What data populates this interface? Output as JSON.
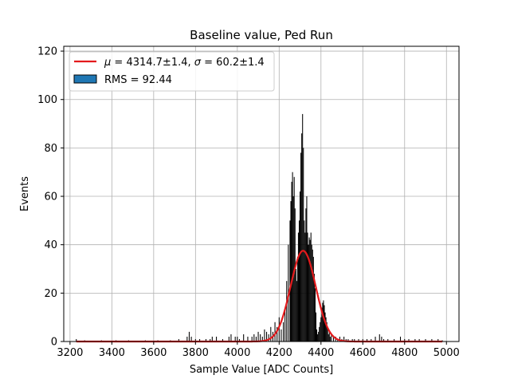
{
  "chart_data": {
    "type": "histogram",
    "title": "Baseline value, Ped Run",
    "xlabel": "Sample Value [ADC Counts]",
    "ylabel": "Events",
    "xlim": [
      3170,
      5060
    ],
    "ylim": [
      0,
      122
    ],
    "xticks": [
      3200,
      3400,
      3600,
      3800,
      4000,
      4200,
      4400,
      4600,
      4800,
      5000
    ],
    "yticks": [
      0,
      20,
      40,
      60,
      80,
      100,
      120
    ],
    "grid": true,
    "legend_position": "top-left",
    "bin_width": 4,
    "histogram": {
      "name": "RMS = 92.44",
      "color": "#000000",
      "legend_patch_color": "#1f77b4",
      "bins": [
        [
          3230,
          1
        ],
        [
          3270,
          0.5
        ],
        [
          3350,
          0.5
        ],
        [
          3420,
          0.5
        ],
        [
          3480,
          0.5
        ],
        [
          3560,
          0.5
        ],
        [
          3620,
          0.5
        ],
        [
          3680,
          0.5
        ],
        [
          3720,
          1
        ],
        [
          3760,
          2
        ],
        [
          3770,
          4
        ],
        [
          3780,
          2
        ],
        [
          3800,
          1
        ],
        [
          3820,
          1
        ],
        [
          3850,
          1
        ],
        [
          3870,
          1
        ],
        [
          3880,
          2
        ],
        [
          3900,
          2
        ],
        [
          3930,
          1
        ],
        [
          3960,
          2
        ],
        [
          3970,
          3
        ],
        [
          3990,
          2
        ],
        [
          4000,
          2
        ],
        [
          4010,
          1
        ],
        [
          4030,
          3
        ],
        [
          4050,
          2
        ],
        [
          4070,
          2
        ],
        [
          4080,
          3
        ],
        [
          4090,
          2
        ],
        [
          4100,
          4
        ],
        [
          4110,
          3
        ],
        [
          4120,
          2
        ],
        [
          4130,
          5
        ],
        [
          4140,
          4
        ],
        [
          4150,
          3
        ],
        [
          4160,
          6
        ],
        [
          4170,
          4
        ],
        [
          4180,
          8
        ],
        [
          4190,
          6
        ],
        [
          4200,
          10
        ],
        [
          4210,
          5
        ],
        [
          4220,
          8
        ],
        [
          4228,
          14
        ],
        [
          4236,
          25
        ],
        [
          4244,
          40
        ],
        [
          4252,
          50
        ],
        [
          4256,
          58
        ],
        [
          4260,
          66
        ],
        [
          4264,
          70
        ],
        [
          4268,
          60
        ],
        [
          4272,
          68
        ],
        [
          4276,
          55
        ],
        [
          4280,
          30
        ],
        [
          4284,
          25
        ],
        [
          4288,
          35
        ],
        [
          4292,
          45
        ],
        [
          4296,
          50
        ],
        [
          4300,
          62
        ],
        [
          4304,
          78
        ],
        [
          4308,
          86
        ],
        [
          4312,
          94
        ],
        [
          4316,
          80
        ],
        [
          4320,
          50
        ],
        [
          4324,
          45
        ],
        [
          4328,
          55
        ],
        [
          4332,
          60
        ],
        [
          4336,
          45
        ],
        [
          4340,
          40
        ],
        [
          4344,
          43
        ],
        [
          4348,
          42
        ],
        [
          4352,
          45
        ],
        [
          4356,
          40
        ],
        [
          4360,
          38
        ],
        [
          4364,
          35
        ],
        [
          4368,
          28
        ],
        [
          4372,
          22
        ],
        [
          4376,
          12
        ],
        [
          4380,
          5
        ],
        [
          4384,
          3
        ],
        [
          4388,
          4
        ],
        [
          4392,
          6
        ],
        [
          4396,
          8
        ],
        [
          4400,
          10
        ],
        [
          4404,
          14
        ],
        [
          4408,
          16
        ],
        [
          4412,
          17
        ],
        [
          4416,
          15
        ],
        [
          4420,
          12
        ],
        [
          4424,
          10
        ],
        [
          4428,
          8
        ],
        [
          4432,
          6
        ],
        [
          4436,
          3
        ],
        [
          4440,
          4
        ],
        [
          4444,
          2
        ],
        [
          4450,
          3
        ],
        [
          4460,
          2
        ],
        [
          4470,
          2
        ],
        [
          4480,
          1
        ],
        [
          4490,
          2
        ],
        [
          4500,
          1
        ],
        [
          4510,
          2
        ],
        [
          4520,
          1
        ],
        [
          4530,
          1
        ],
        [
          4550,
          1
        ],
        [
          4560,
          1
        ],
        [
          4580,
          1
        ],
        [
          4600,
          1
        ],
        [
          4620,
          1
        ],
        [
          4640,
          1
        ],
        [
          4660,
          2
        ],
        [
          4680,
          3
        ],
        [
          4690,
          2
        ],
        [
          4700,
          1
        ],
        [
          4720,
          1
        ],
        [
          4750,
          1
        ],
        [
          4780,
          2
        ],
        [
          4800,
          1
        ],
        [
          4820,
          1
        ],
        [
          4850,
          1
        ],
        [
          4870,
          1
        ],
        [
          4900,
          1
        ],
        [
          4930,
          1
        ],
        [
          4960,
          1
        ],
        [
          4980,
          0.5
        ]
      ]
    },
    "fit": {
      "name": "μ = 4314.7±1.4, σ = 60.2±1.4",
      "label_mu": "μ",
      "label_rest": " = 4314.7±1.4, ",
      "label_sigma": "σ",
      "label_tail": " = 60.2±1.4",
      "color": "#e31a1c",
      "mu": 4314.7,
      "sigma": 60.2,
      "amplitude": 37.5,
      "x_range": [
        3230,
        4980
      ]
    }
  }
}
